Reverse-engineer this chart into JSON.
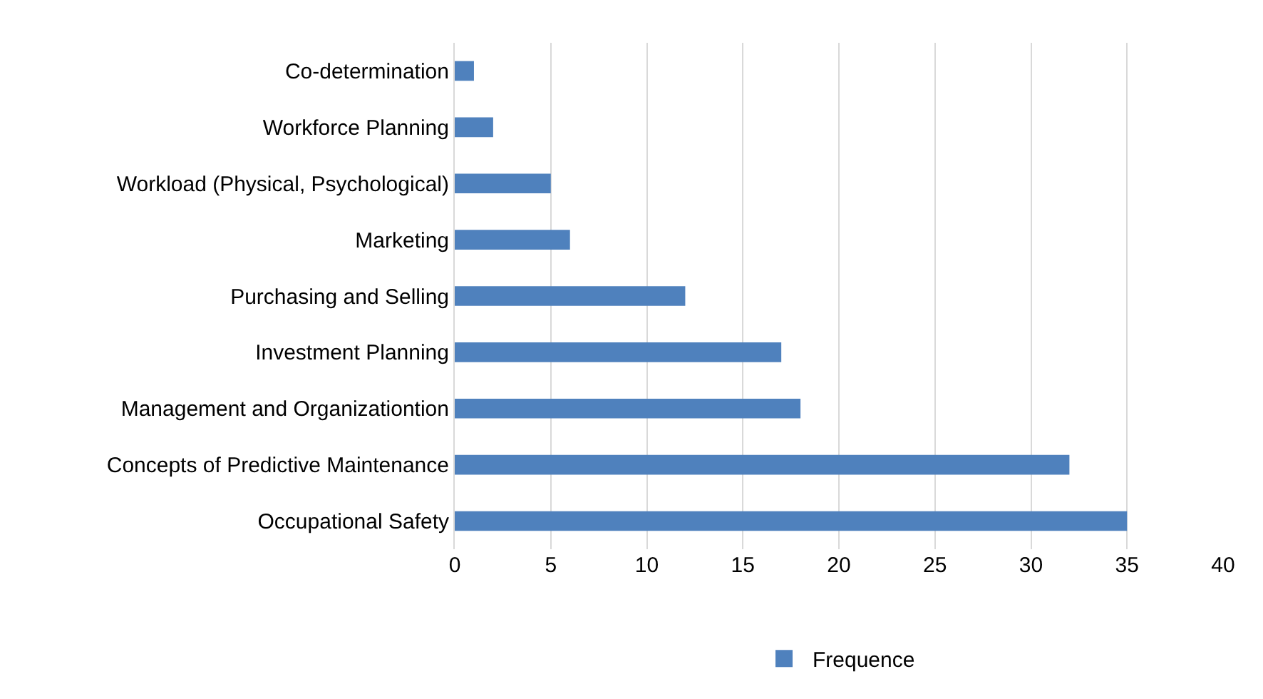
{
  "chart_data": {
    "type": "bar",
    "orientation": "horizontal",
    "categories": [
      "Co-determination",
      "Workforce Planning",
      "Workload (Physical, Psychological)",
      "Marketing",
      "Purchasing and Selling",
      "Investment Planning",
      "Management and Organizationtion",
      "Concepts of Predictive Maintenance",
      "Occupational Safety"
    ],
    "series": [
      {
        "name": "Frequence",
        "color": "#4f81bd",
        "values": [
          1,
          2,
          5,
          6,
          12,
          17,
          18,
          32,
          35
        ]
      }
    ],
    "xlim": [
      0,
      40
    ],
    "xticks": [
      0,
      5,
      10,
      15,
      20,
      25,
      30,
      35,
      40
    ],
    "grid": "x",
    "legend": "bottom"
  }
}
